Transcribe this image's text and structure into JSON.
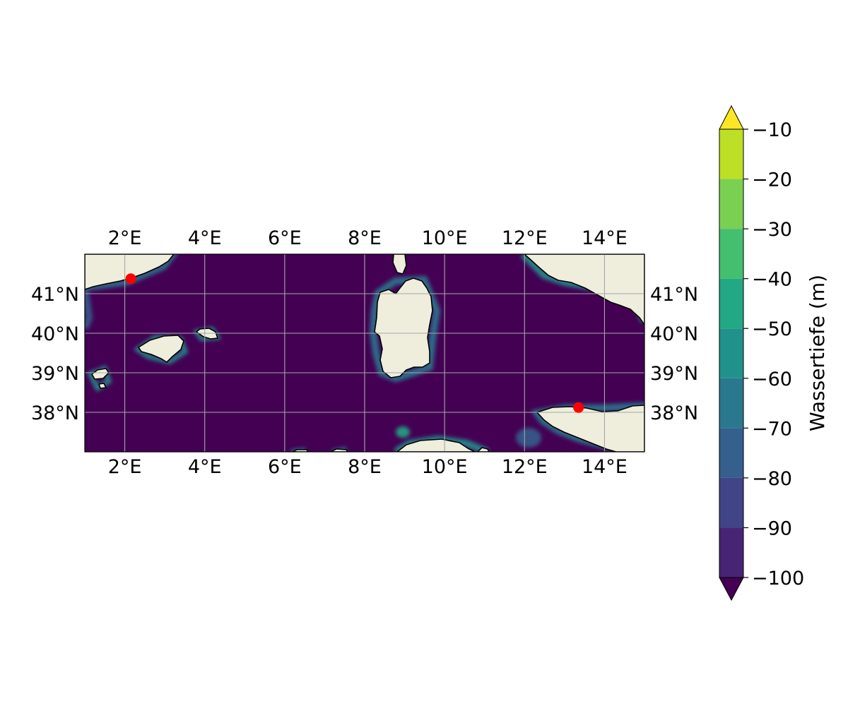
{
  "map": {
    "lon_range": [
      1,
      15
    ],
    "lat_range": [
      37,
      42
    ],
    "lon_ticks": [
      {
        "value": 2,
        "label": "2°E"
      },
      {
        "value": 4,
        "label": "4°E"
      },
      {
        "value": 6,
        "label": "6°E"
      },
      {
        "value": 8,
        "label": "8°E"
      },
      {
        "value": 10,
        "label": "10°E"
      },
      {
        "value": 12,
        "label": "12°E"
      },
      {
        "value": 14,
        "label": "14°E"
      }
    ],
    "lat_ticks": [
      {
        "value": 41,
        "label": "41°N"
      },
      {
        "value": 40,
        "label": "40°N"
      },
      {
        "value": 39,
        "label": "39°N"
      },
      {
        "value": 38,
        "label": "38°N"
      }
    ],
    "gridlines": true,
    "colors": {
      "sea_deep": "#440154",
      "land": "#efeedd",
      "coastline": "#000000",
      "grid": "#a6a6a6",
      "marker": "#ff0000"
    },
    "markers": [
      {
        "lon": 2.15,
        "lat": 41.38
      },
      {
        "lon": 13.35,
        "lat": 38.12
      }
    ]
  },
  "colorbar": {
    "label": "Wassertiefe (m)",
    "extend": "both",
    "levels": [
      -100,
      -90,
      -80,
      -70,
      -60,
      -50,
      -40,
      -30,
      -20,
      -10
    ],
    "tick_labels": [
      "−100",
      "−90",
      "−80",
      "−70",
      "−60",
      "−50",
      "−40",
      "−30",
      "−20",
      "−10"
    ],
    "bin_colors": [
      "#482475",
      "#414487",
      "#355f8d",
      "#2a788e",
      "#21918c",
      "#22a884",
      "#44bf70",
      "#7ad151",
      "#bddf26"
    ],
    "under_color": "#440154",
    "over_color": "#fde725"
  }
}
